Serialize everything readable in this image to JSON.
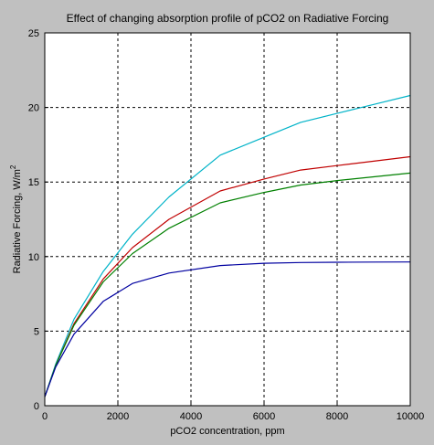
{
  "chart_data": {
    "type": "line",
    "title": "Effect of changing absorption profile of pCO2 on Radiative Forcing",
    "xlabel": "pCO2 concentration, ppm",
    "ylabel_main": "Radiative Forcing, W/m",
    "ylabel_sup": "2",
    "xlim": [
      0,
      10000
    ],
    "ylim": [
      0,
      25
    ],
    "xticks": [
      0,
      2000,
      4000,
      6000,
      8000,
      10000
    ],
    "yticks": [
      0,
      5,
      10,
      15,
      20,
      25
    ],
    "grid": true,
    "series": [
      {
        "color": "#00b3c8",
        "x": [
          0,
          300,
          800,
          1600,
          2400,
          3400,
          4800,
          6000,
          7000,
          8000,
          9000,
          10000
        ],
        "y": [
          0.6,
          2.8,
          5.8,
          9.0,
          11.5,
          14.0,
          16.8,
          18.0,
          19.0,
          19.6,
          20.2,
          20.8
        ]
      },
      {
        "color": "#c00000",
        "x": [
          0,
          300,
          800,
          1600,
          2400,
          3400,
          4800,
          6000,
          7000,
          8000,
          9000,
          10000
        ],
        "y": [
          0.6,
          2.7,
          5.5,
          8.5,
          10.6,
          12.5,
          14.4,
          15.2,
          15.8,
          16.1,
          16.4,
          16.7
        ]
      },
      {
        "color": "#008000",
        "x": [
          0,
          300,
          800,
          1600,
          2400,
          3400,
          4800,
          6000,
          7000,
          8000,
          9000,
          10000
        ],
        "y": [
          0.6,
          2.7,
          5.4,
          8.3,
          10.2,
          11.9,
          13.6,
          14.3,
          14.8,
          15.1,
          15.35,
          15.6
        ]
      },
      {
        "color": "#0000a0",
        "x": [
          0,
          300,
          800,
          1600,
          2400,
          3400,
          4800,
          6000,
          7000,
          8000,
          9000,
          10000
        ],
        "y": [
          0.6,
          2.6,
          4.8,
          7.0,
          8.2,
          8.9,
          9.4,
          9.55,
          9.6,
          9.62,
          9.63,
          9.64
        ]
      }
    ]
  }
}
